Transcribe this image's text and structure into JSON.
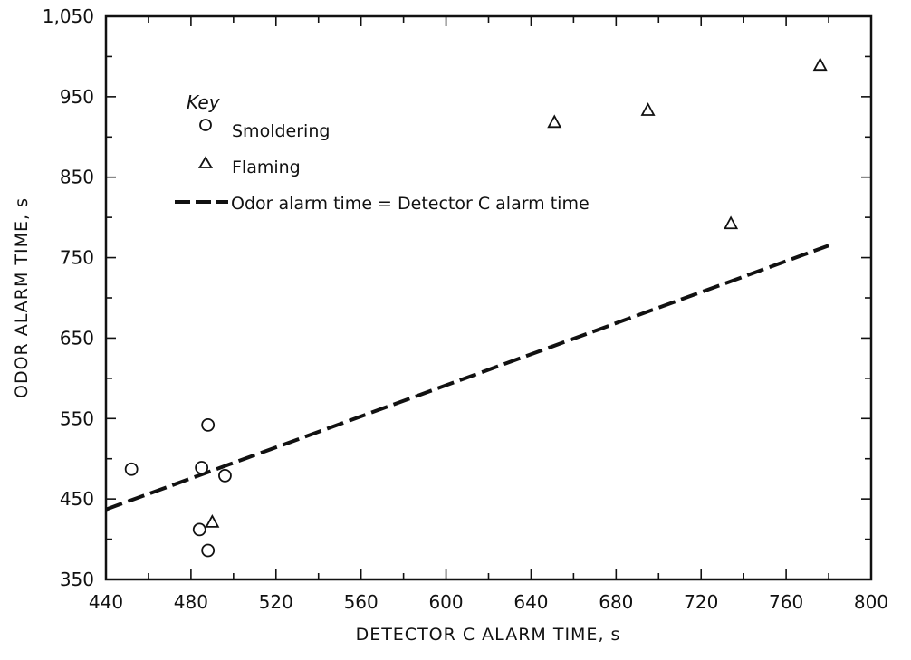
{
  "chart_data": {
    "type": "scatter",
    "xlabel": "DETECTOR C ALARM TIME, s",
    "ylabel": "ODOR ALARM TIME, s",
    "xlim": [
      440,
      800
    ],
    "ylim": [
      350,
      1050
    ],
    "x_ticks": [
      440,
      480,
      520,
      560,
      600,
      640,
      680,
      720,
      760,
      800
    ],
    "y_ticks": [
      350,
      450,
      550,
      650,
      750,
      850,
      950,
      1050
    ],
    "y_tick_labels": [
      "350",
      "450",
      "550",
      "650",
      "750",
      "850",
      "950",
      "1,050"
    ],
    "x_minor_step": 20,
    "y_minor_step": 50,
    "grid": false,
    "legend": {
      "title": "Key",
      "placement": "top-left",
      "entries": [
        {
          "label": "Smoldering",
          "marker": "circle"
        },
        {
          "label": "Flaming",
          "marker": "triangle"
        },
        {
          "label": "Odor alarm time = Detector C alarm time",
          "marker": "dashed-line"
        }
      ]
    },
    "series": [
      {
        "name": "Smoldering",
        "marker": "circle",
        "points": [
          {
            "x": 452,
            "y": 487
          },
          {
            "x": 485,
            "y": 489
          },
          {
            "x": 488,
            "y": 542
          },
          {
            "x": 496,
            "y": 479
          },
          {
            "x": 484,
            "y": 412
          },
          {
            "x": 488,
            "y": 386
          }
        ]
      },
      {
        "name": "Flaming",
        "marker": "triangle",
        "points": [
          {
            "x": 490,
            "y": 421
          },
          {
            "x": 651,
            "y": 918
          },
          {
            "x": 695,
            "y": 933
          },
          {
            "x": 734,
            "y": 792
          },
          {
            "x": 776,
            "y": 989
          }
        ]
      },
      {
        "name": "Odor alarm time = Detector C alarm time",
        "type": "line",
        "style": "dashed",
        "points": [
          {
            "x": 440,
            "y": 437
          },
          {
            "x": 780,
            "y": 765
          }
        ]
      }
    ]
  }
}
